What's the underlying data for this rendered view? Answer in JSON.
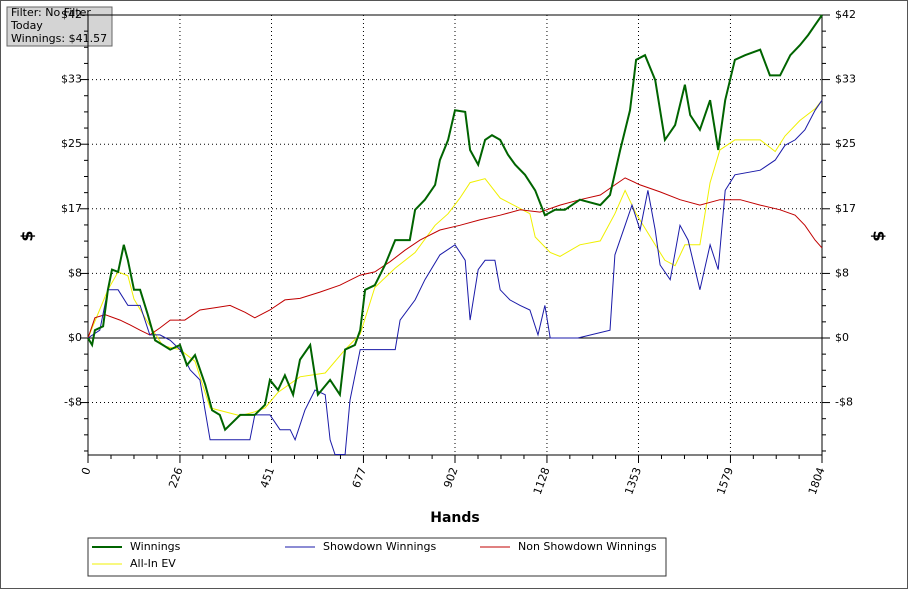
{
  "chart_data": {
    "type": "line",
    "annotations": [
      "Filter: No Filter",
      "Today",
      "Winnings: $41.57"
    ],
    "xlabel": "Hands",
    "ylabel": "$",
    "xlim": [
      0,
      1804
    ],
    "xticks": [
      0,
      226,
      451,
      677,
      902,
      1128,
      1353,
      1579,
      1804
    ],
    "ylim": [
      -15.06,
      41.57
    ],
    "yticks": [
      {
        "value": -8.31,
        "label": "-$8"
      },
      {
        "value": 0,
        "label": "$0"
      },
      {
        "value": 8.31,
        "label": "$8"
      },
      {
        "value": 16.63,
        "label": "$17"
      },
      {
        "value": 24.94,
        "label": "$25"
      },
      {
        "value": 33.26,
        "label": "$33"
      },
      {
        "value": 41.57,
        "label": "$42"
      }
    ],
    "grid": true,
    "series": [
      {
        "name": "Winnings",
        "color": "#006400",
        "x": [
          0,
          10,
          17,
          37,
          49,
          59,
          74,
          88,
          98,
          113,
          128,
          147,
          165,
          184,
          202,
          226,
          243,
          263,
          288,
          305,
          324,
          337,
          374,
          410,
          435,
          447,
          467,
          484,
          504,
          521,
          546,
          565,
          595,
          619,
          632,
          656,
          669,
          681,
          705,
          730,
          755,
          791,
          804,
          828,
          853,
          865,
          885,
          902,
          927,
          939,
          959,
          976,
          993,
          1013,
          1032,
          1050,
          1074,
          1099,
          1123,
          1148,
          1172,
          1209,
          1259,
          1283,
          1308,
          1332,
          1347,
          1369,
          1394,
          1418,
          1443,
          1467,
          1480,
          1504,
          1529,
          1549,
          1566,
          1590,
          1615,
          1652,
          1676,
          1701,
          1726,
          1750,
          1770,
          1787,
          1804
        ],
        "values": [
          0,
          -0.9,
          1.0,
          1.5,
          6.2,
          8.8,
          8.5,
          12.0,
          10.0,
          6.2,
          6.2,
          3.0,
          -0.3,
          -0.9,
          -1.5,
          -0.9,
          -3.5,
          -2.2,
          -6.0,
          -9.3,
          -9.9,
          -11.8,
          -9.9,
          -9.9,
          -8.6,
          -5.4,
          -6.7,
          -4.8,
          -7.3,
          -2.8,
          -0.9,
          -7.3,
          -5.4,
          -7.3,
          -1.5,
          -0.9,
          1.0,
          6.2,
          6.8,
          9.4,
          12.6,
          12.6,
          16.5,
          17.8,
          19.7,
          22.9,
          25.5,
          29.3,
          29.1,
          24.2,
          22.3,
          25.5,
          26.1,
          25.5,
          23.6,
          22.3,
          21.0,
          19.0,
          15.8,
          16.5,
          16.5,
          17.8,
          17.1,
          18.4,
          24.2,
          29.3,
          35.8,
          36.4,
          33.2,
          25.5,
          27.4,
          32.6,
          28.7,
          26.8,
          30.6,
          24.2,
          30.6,
          35.8,
          36.4,
          37.1,
          33.8,
          33.8,
          36.4,
          37.7,
          39.0,
          40.3,
          41.57
        ]
      },
      {
        "name": "Showdown Winnings",
        "color": "#1a1aa8",
        "x": [
          0,
          29,
          49,
          74,
          98,
          128,
          152,
          177,
          202,
          226,
          251,
          275,
          300,
          398,
          410,
          447,
          472,
          497,
          509,
          533,
          558,
          583,
          595,
          607,
          632,
          644,
          669,
          755,
          767,
          804,
          828,
          865,
          902,
          927,
          939,
          959,
          976,
          1000,
          1013,
          1037,
          1062,
          1086,
          1106,
          1123,
          1136,
          1204,
          1283,
          1295,
          1320,
          1337,
          1357,
          1376,
          1394,
          1406,
          1431,
          1455,
          1475,
          1504,
          1529,
          1549,
          1566,
          1590,
          1652,
          1689,
          1713,
          1738,
          1762,
          1787,
          1804
        ],
        "values": [
          0,
          1.0,
          6.2,
          6.2,
          4.2,
          4.2,
          0.4,
          0.4,
          -0.3,
          -1.5,
          -4.1,
          -5.4,
          -13.1,
          -13.1,
          -9.9,
          -9.9,
          -11.8,
          -11.8,
          -13.1,
          -9.3,
          -6.7,
          -7.3,
          -13.1,
          -15.0,
          -15.0,
          -8.0,
          -1.5,
          -1.5,
          2.3,
          4.9,
          7.5,
          10.7,
          12.0,
          10.0,
          2.3,
          8.8,
          10.0,
          10.0,
          6.2,
          4.9,
          4.2,
          3.6,
          0.4,
          4.2,
          0,
          0,
          1.0,
          10.7,
          14.5,
          17.1,
          13.9,
          19.0,
          13.9,
          9.4,
          7.5,
          14.5,
          12.6,
          6.2,
          12.0,
          8.8,
          19.0,
          21.0,
          21.6,
          22.9,
          24.8,
          25.5,
          26.8,
          29.3,
          30.6
        ]
      },
      {
        "name": "Non Showdown Winnings",
        "color": "#c00000",
        "x": [
          0,
          17,
          42,
          79,
          103,
          128,
          152,
          177,
          202,
          238,
          275,
          312,
          349,
          386,
          410,
          447,
          484,
          521,
          570,
          619,
          669,
          705,
          742,
          779,
          816,
          865,
          914,
          963,
          1013,
          1062,
          1111,
          1160,
          1209,
          1259,
          1295,
          1320,
          1357,
          1406,
          1455,
          1504,
          1553,
          1603,
          1652,
          1701,
          1738,
          1762,
          1787,
          1804
        ],
        "values": [
          0,
          2.6,
          3.0,
          2.3,
          1.7,
          1.0,
          0.4,
          1.3,
          2.3,
          2.3,
          3.6,
          3.9,
          4.2,
          3.3,
          2.6,
          3.6,
          4.9,
          5.1,
          5.9,
          6.8,
          8.1,
          8.5,
          9.8,
          11.3,
          12.6,
          13.9,
          14.5,
          15.2,
          15.8,
          16.5,
          16.2,
          17.1,
          17.8,
          18.4,
          19.7,
          20.6,
          19.7,
          18.8,
          17.8,
          17.1,
          17.8,
          17.8,
          17.1,
          16.5,
          15.8,
          14.5,
          12.6,
          11.6
        ]
      },
      {
        "name": "All-In EV",
        "color": "#f0f000",
        "x": [
          0,
          49,
          74,
          98,
          113,
          147,
          184,
          226,
          263,
          300,
          374,
          410,
          435,
          467,
          521,
          583,
          632,
          669,
          705,
          755,
          804,
          853,
          885,
          914,
          939,
          976,
          1013,
          1050,
          1086,
          1099,
          1136,
          1160,
          1209,
          1259,
          1295,
          1320,
          1347,
          1394,
          1418,
          1443,
          1467,
          1504,
          1529,
          1553,
          1590,
          1652,
          1689,
          1713,
          1750,
          1787,
          1804
        ],
        "values": [
          0,
          6.2,
          8.5,
          8,
          5,
          2,
          -1,
          -1.5,
          -3,
          -9,
          -10,
          -9.5,
          -9,
          -7,
          -5,
          -4.5,
          -1.5,
          0.5,
          6.5,
          9,
          11,
          14.5,
          16,
          18,
          20,
          20.5,
          18,
          17,
          16,
          13,
          11,
          10.5,
          12,
          12.5,
          16,
          19,
          16,
          12,
          10,
          9.3,
          12,
          12,
          20,
          24.2,
          25.5,
          25.5,
          24,
          26,
          28,
          29.5,
          30.6
        ]
      }
    ]
  }
}
